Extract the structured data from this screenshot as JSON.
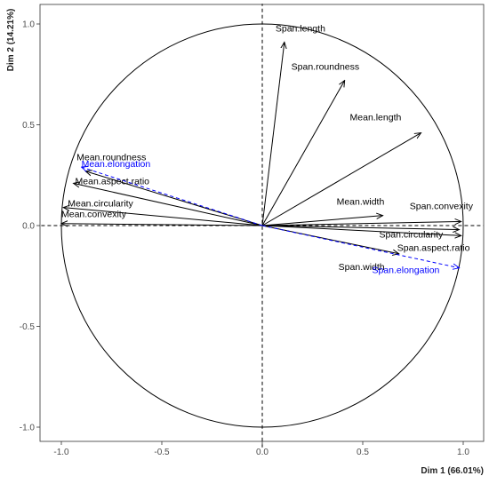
{
  "chart_data": {
    "type": "pca-correlation-circle",
    "xlabel": "Dim 1 (66.01%)",
    "ylabel": "Dim 2 (14.21%)",
    "xlim": [
      -1.1,
      1.1
    ],
    "ylim": [
      -1.1,
      1.1
    ],
    "x_ticks": [
      -1.0,
      -0.5,
      0.0,
      0.5,
      1.0
    ],
    "x_tick_labels": [
      "-1.0",
      "-0.5",
      "0.0",
      "0.5",
      "1.0"
    ],
    "y_ticks": [
      -1.0,
      -0.5,
      0.0,
      0.5,
      1.0
    ],
    "y_tick_labels": [
      "-1.0",
      "-0.5",
      "0.0",
      "0.5",
      "1.0"
    ],
    "grid": false,
    "unit_circle": true,
    "colors": {
      "active": "#000000",
      "supplementary": "#0000ff",
      "axis": "#000000",
      "ticks": "#4d4d4d"
    },
    "series": [
      {
        "name": "Span.length",
        "x": 0.11,
        "y": 0.91,
        "supplementary": false
      },
      {
        "name": "Span.roundness",
        "x": 0.41,
        "y": 0.72,
        "supplementary": false
      },
      {
        "name": "Mean.length",
        "x": 0.79,
        "y": 0.46,
        "supplementary": false
      },
      {
        "name": "Mean.width",
        "x": 0.6,
        "y": 0.05,
        "supplementary": false
      },
      {
        "name": "Span.convexity",
        "x": 0.99,
        "y": 0.02,
        "supplementary": false
      },
      {
        "name": "Span.circularity",
        "x": 0.98,
        "y": -0.02,
        "supplementary": false
      },
      {
        "name": "Span.aspect.ratio",
        "x": 0.99,
        "y": -0.05,
        "supplementary": false
      },
      {
        "name": "Span.width",
        "x": 0.68,
        "y": -0.14,
        "supplementary": false
      },
      {
        "name": "Mean.roundness",
        "x": -0.88,
        "y": 0.27,
        "supplementary": false
      },
      {
        "name": "Mean.aspect.ratio",
        "x": -0.94,
        "y": 0.21,
        "supplementary": false
      },
      {
        "name": "Mean.circularity",
        "x": -0.99,
        "y": 0.09,
        "supplementary": false
      },
      {
        "name": "Mean.convexity",
        "x": -1.0,
        "y": 0.01,
        "supplementary": false
      },
      {
        "name": "Mean.elongation",
        "x": -0.9,
        "y": 0.29,
        "supplementary": true
      },
      {
        "name": "Span.elongation",
        "x": 0.98,
        "y": -0.21,
        "supplementary": true
      }
    ]
  }
}
